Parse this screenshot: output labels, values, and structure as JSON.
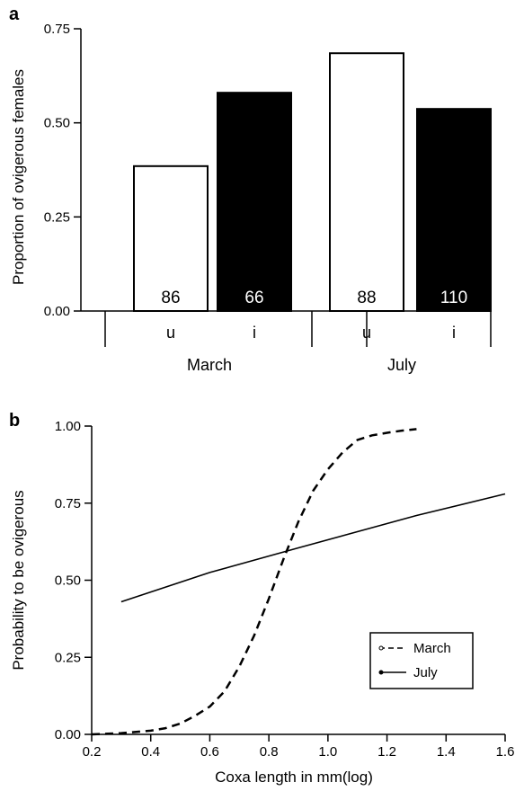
{
  "chart_data": [
    {
      "panel": "a",
      "type": "bar",
      "ylabel": "Proportion of ovigerous females",
      "ylim": [
        0,
        0.75
      ],
      "yticks": [
        "0.00",
        "0.25",
        "0.50",
        "0.75"
      ],
      "groups": [
        "March",
        "July"
      ],
      "categories": [
        "u",
        "i",
        "u",
        "i"
      ],
      "values": [
        0.385,
        0.58,
        0.685,
        0.537
      ],
      "bar_labels": [
        "86",
        "66",
        "88",
        "110"
      ],
      "fills": [
        "#ffffff",
        "#000000",
        "#ffffff",
        "#000000"
      ]
    },
    {
      "panel": "b",
      "type": "line",
      "xlabel": "Coxa length in mm(log)",
      "ylabel": "Probability to be ovigerous",
      "xlim": [
        0.2,
        1.6
      ],
      "ylim": [
        0,
        1
      ],
      "xticks": [
        "0.2",
        "0.4",
        "0.6",
        "0.8",
        "1.0",
        "1.2",
        "1.4",
        "1.6"
      ],
      "yticks": [
        "0.00",
        "0.25",
        "0.50",
        "0.75",
        "1.00"
      ],
      "legend_position": "bottom-right",
      "series": [
        {
          "name": "March",
          "style": "dashed",
          "x": [
            0.2,
            0.3,
            0.4,
            0.45,
            0.5,
            0.55,
            0.6,
            0.65,
            0.7,
            0.75,
            0.8,
            0.85,
            0.9,
            0.95,
            1.0,
            1.05,
            1.1,
            1.15,
            1.2,
            1.25,
            1.3
          ],
          "y": [
            0.0,
            0.004,
            0.012,
            0.02,
            0.035,
            0.06,
            0.09,
            0.14,
            0.22,
            0.32,
            0.44,
            0.57,
            0.69,
            0.79,
            0.86,
            0.915,
            0.955,
            0.97,
            0.978,
            0.985,
            0.99
          ]
        },
        {
          "name": "July",
          "style": "solid",
          "x": [
            0.3,
            0.6,
            0.9,
            1.3,
            1.6
          ],
          "y": [
            0.43,
            0.525,
            0.605,
            0.71,
            0.78
          ]
        }
      ]
    }
  ]
}
